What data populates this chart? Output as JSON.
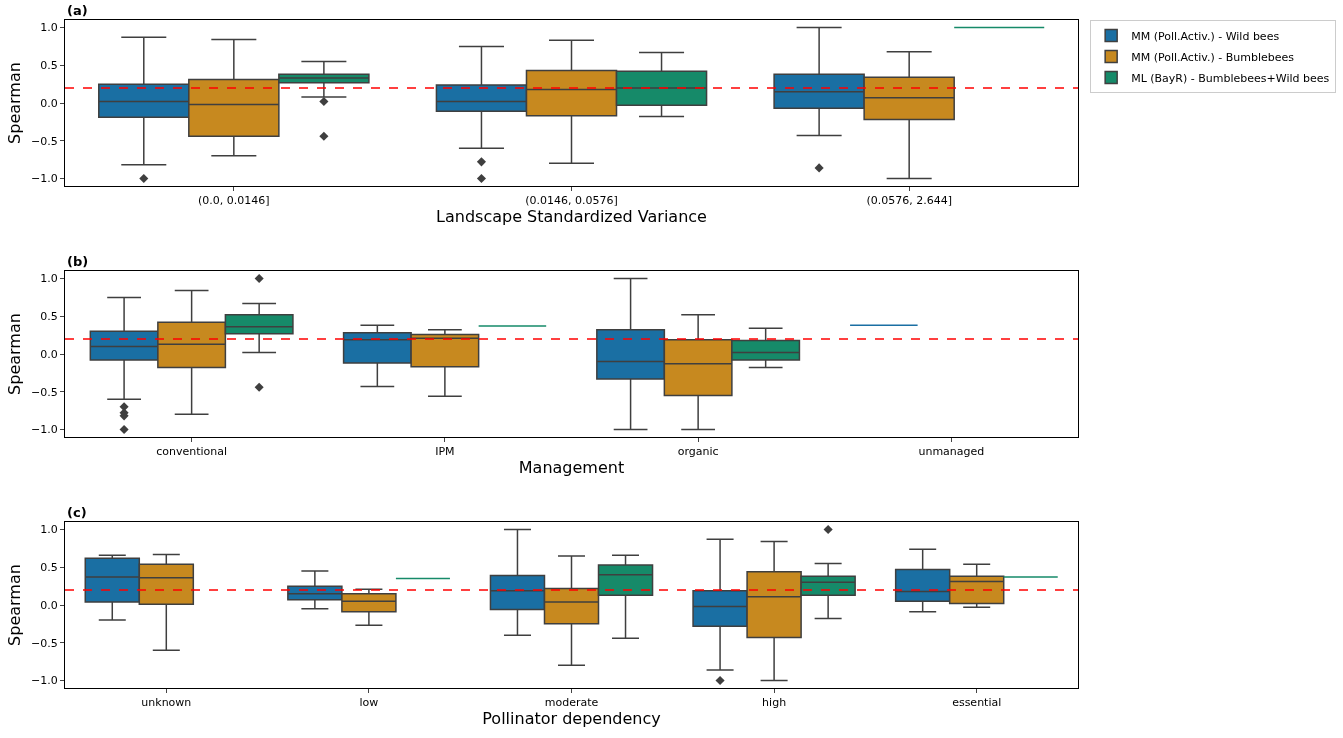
{
  "chart_data": [
    {
      "type": "box",
      "title": "(a)",
      "xlabel": "Landscape Standardized Variance",
      "ylabel": "Spearman",
      "categories": [
        "(0.0, 0.0146]",
        "(0.0146, 0.0576]",
        "(0.0576, 2.644]"
      ],
      "ylim": [
        -1.1,
        1.1
      ],
      "yticks": [
        {
          "value": -1.0,
          "label": "−1.0"
        },
        {
          "value": -0.5,
          "label": "−0.5"
        },
        {
          "value": 0.0,
          "label": "0.0"
        },
        {
          "value": 0.5,
          "label": "0.5"
        },
        {
          "value": 1.0,
          "label": "1.0"
        }
      ],
      "legend": "right",
      "ref_lines": [
        {
          "axis": "y",
          "value": 0.2,
          "color": "#ff0000",
          "line_style": "dashed"
        }
      ],
      "series": [
        {
          "name": "MM (Poll.Activ.) - Wild bees",
          "color": "#1a6fa3",
          "boxes": [
            {
              "low": -0.82,
              "q1": -0.19,
              "median": 0.02,
              "q3": 0.25,
              "high": 0.87,
              "outliers": [
                -1.0
              ]
            },
            {
              "low": -0.6,
              "q1": -0.11,
              "median": 0.02,
              "q3": 0.24,
              "high": 0.75,
              "outliers": [
                -0.78,
                -1.0
              ]
            },
            {
              "low": -0.43,
              "q1": -0.07,
              "median": 0.15,
              "q3": 0.38,
              "high": 1.0,
              "outliers": [
                -0.86
              ]
            }
          ]
        },
        {
          "name": "MM (Poll.Activ.) - Bumblebees",
          "color": "#c7891f",
          "boxes": [
            {
              "low": -0.7,
              "q1": -0.44,
              "median": -0.02,
              "q3": 0.31,
              "high": 0.84
            },
            {
              "low": -0.8,
              "q1": -0.17,
              "median": 0.18,
              "q3": 0.43,
              "high": 0.83
            },
            {
              "low": -1.0,
              "q1": -0.22,
              "median": 0.07,
              "q3": 0.34,
              "high": 0.68
            }
          ]
        },
        {
          "name": "ML (BayR) - Bumblebees+Wild bees",
          "color": "#168a69",
          "boxes": [
            {
              "low": 0.08,
              "q1": 0.27,
              "median": 0.33,
              "q3": 0.38,
              "high": 0.55,
              "outliers": [
                0.02,
                -0.44
              ]
            },
            {
              "low": -0.18,
              "q1": -0.03,
              "median": 0.2,
              "q3": 0.42,
              "high": 0.67
            },
            {
              "low": 1.0,
              "q1": 1.0,
              "median": 1.0,
              "q3": 1.0,
              "high": 1.0
            }
          ]
        }
      ]
    },
    {
      "type": "box",
      "title": "(b)",
      "xlabel": "Management",
      "ylabel": "Spearman",
      "categories": [
        "conventional",
        "IPM",
        "organic",
        "unmanaged"
      ],
      "ylim": [
        -1.1,
        1.1
      ],
      "yticks": [
        {
          "value": -1.0,
          "label": "−1.0"
        },
        {
          "value": -0.5,
          "label": "−0.5"
        },
        {
          "value": 0.0,
          "label": "0.0"
        },
        {
          "value": 0.5,
          "label": "0.5"
        },
        {
          "value": 1.0,
          "label": "1.0"
        }
      ],
      "ref_lines": [
        {
          "axis": "y",
          "value": 0.2,
          "color": "#ff0000",
          "line_style": "dashed"
        }
      ],
      "series": [
        {
          "color": "#1a6fa3",
          "boxes": [
            {
              "low": -0.6,
              "q1": -0.08,
              "median": 0.1,
              "q3": 0.3,
              "high": 0.75,
              "outliers": [
                -0.7,
                -0.78,
                -0.82,
                -1.0
              ]
            },
            {
              "low": -0.43,
              "q1": -0.12,
              "median": 0.19,
              "q3": 0.28,
              "high": 0.38
            },
            {
              "low": -1.0,
              "q1": -0.33,
              "median": -0.1,
              "q3": 0.32,
              "high": 1.0
            },
            {
              "low": 0.38,
              "q1": 0.38,
              "median": 0.38,
              "q3": 0.38,
              "high": 0.38
            }
          ]
        },
        {
          "color": "#c7891f",
          "boxes": [
            {
              "low": -0.8,
              "q1": -0.18,
              "median": 0.13,
              "q3": 0.42,
              "high": 0.84
            },
            {
              "low": -0.56,
              "q1": -0.17,
              "median": 0.21,
              "q3": 0.26,
              "high": 0.32
            },
            {
              "low": -1.0,
              "q1": -0.55,
              "median": -0.13,
              "q3": 0.19,
              "high": 0.52
            },
            null
          ]
        },
        {
          "color": "#168a69",
          "boxes": [
            {
              "low": 0.02,
              "q1": 0.27,
              "median": 0.36,
              "q3": 0.52,
              "high": 0.67,
              "outliers": [
                1.0,
                -0.44
              ]
            },
            {
              "low": 0.37,
              "q1": 0.37,
              "median": 0.37,
              "q3": 0.37,
              "high": 0.37
            },
            {
              "low": -0.18,
              "q1": -0.08,
              "median": 0.02,
              "q3": 0.18,
              "high": 0.34
            },
            null
          ]
        }
      ]
    },
    {
      "type": "box",
      "title": "(c)",
      "xlabel": "Pollinator dependency",
      "ylabel": "Spearman",
      "categories": [
        "unknown",
        "low",
        "moderate",
        "high",
        "essential"
      ],
      "ylim": [
        -1.1,
        1.1
      ],
      "yticks": [
        {
          "value": -1.0,
          "label": "−1.0"
        },
        {
          "value": -0.5,
          "label": "−0.5"
        },
        {
          "value": 0.0,
          "label": "0.0"
        },
        {
          "value": 0.5,
          "label": "0.5"
        },
        {
          "value": 1.0,
          "label": "1.0"
        }
      ],
      "ref_lines": [
        {
          "axis": "y",
          "value": 0.2,
          "color": "#ff0000",
          "line_style": "dashed"
        }
      ],
      "series": [
        {
          "color": "#1a6fa3",
          "boxes": [
            {
              "low": -0.2,
              "q1": 0.04,
              "median": 0.37,
              "q3": 0.62,
              "high": 0.66
            },
            {
              "low": -0.05,
              "q1": 0.07,
              "median": 0.15,
              "q3": 0.25,
              "high": 0.45
            },
            {
              "low": -0.4,
              "q1": -0.06,
              "median": 0.19,
              "q3": 0.39,
              "high": 1.0
            },
            {
              "low": -0.86,
              "q1": -0.28,
              "median": -0.02,
              "q3": 0.19,
              "high": 0.87,
              "outliers": [
                -1.0
              ]
            },
            {
              "low": -0.09,
              "q1": 0.05,
              "median": 0.18,
              "q3": 0.47,
              "high": 0.74
            }
          ]
        },
        {
          "color": "#c7891f",
          "boxes": [
            {
              "low": -0.6,
              "q1": 0.01,
              "median": 0.36,
              "q3": 0.54,
              "high": 0.67
            },
            {
              "low": -0.27,
              "q1": -0.09,
              "median": 0.05,
              "q3": 0.15,
              "high": 0.21
            },
            {
              "low": -0.8,
              "q1": -0.25,
              "median": 0.04,
              "q3": 0.22,
              "high": 0.65
            },
            {
              "low": -1.0,
              "q1": -0.43,
              "median": 0.11,
              "q3": 0.44,
              "high": 0.84
            },
            {
              "low": -0.03,
              "q1": 0.02,
              "median": 0.31,
              "q3": 0.38,
              "high": 0.54
            }
          ]
        },
        {
          "color": "#168a69",
          "boxes": [
            null,
            {
              "low": 0.35,
              "q1": 0.35,
              "median": 0.35,
              "q3": 0.35,
              "high": 0.35
            },
            {
              "low": -0.44,
              "q1": 0.13,
              "median": 0.4,
              "q3": 0.53,
              "high": 0.66
            },
            {
              "low": -0.18,
              "q1": 0.13,
              "median": 0.3,
              "q3": 0.38,
              "high": 0.55,
              "outliers": [
                1.0
              ]
            },
            {
              "low": 0.37,
              "q1": 0.37,
              "median": 0.37,
              "q3": 0.37,
              "high": 0.37
            }
          ]
        }
      ]
    }
  ]
}
